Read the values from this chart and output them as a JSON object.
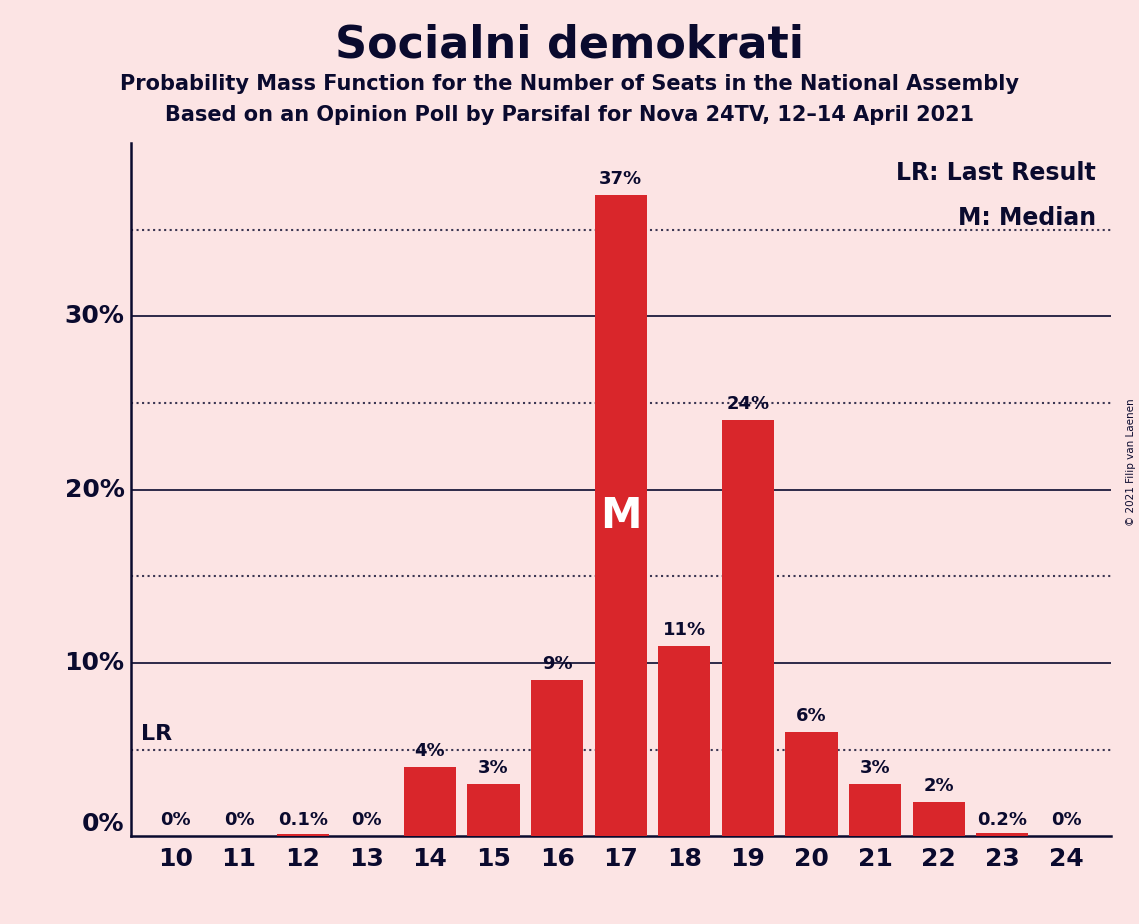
{
  "title": "Socialni demokrati",
  "subtitle1": "Probability Mass Function for the Number of Seats in the National Assembly",
  "subtitle2": "Based on an Opinion Poll by Parsifal for Nova 24TV, 12–14 April 2021",
  "copyright": "© 2021 Filip van Laenen",
  "seats": [
    10,
    11,
    12,
    13,
    14,
    15,
    16,
    17,
    18,
    19,
    20,
    21,
    22,
    23,
    24
  ],
  "values": [
    0.0,
    0.0,
    0.001,
    0.0,
    0.04,
    0.03,
    0.09,
    0.37,
    0.11,
    0.24,
    0.06,
    0.03,
    0.02,
    0.002,
    0.0
  ],
  "labels": [
    "0%",
    "0%",
    "0.1%",
    "0%",
    "4%",
    "3%",
    "9%",
    "37%",
    "11%",
    "24%",
    "6%",
    "3%",
    "2%",
    "0.2%",
    "0%"
  ],
  "bar_color": "#d9262b",
  "background_color": "#fce4e4",
  "text_color": "#0a0a2e",
  "lr_value": 0.05,
  "median_seat": 17,
  "legend_lr": "LR: Last Result",
  "legend_m": "M: Median",
  "solid_lines": [
    0.1,
    0.2,
    0.3
  ],
  "solid_line_labels": [
    "10%",
    "20%",
    "30%"
  ],
  "dotted_lines": [
    0.05,
    0.15,
    0.25,
    0.35
  ],
  "ylim": [
    0,
    0.4
  ],
  "xlim_left": 9.3,
  "xlim_right": 24.7
}
